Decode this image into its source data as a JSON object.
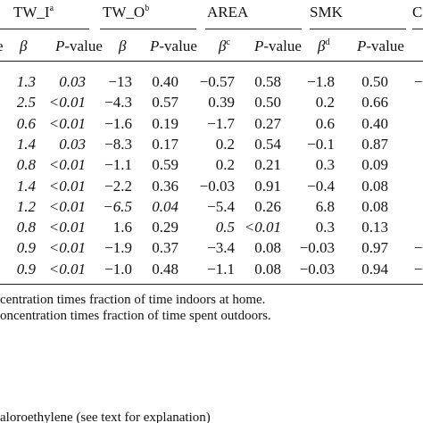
{
  "table": {
    "group_headers": [
      {
        "text": "TW_I",
        "sup": "a"
      },
      {
        "text": "TW_O",
        "sup": "b"
      },
      {
        "text": "AREA"
      },
      {
        "text": "SMK"
      },
      {
        "text": "C"
      }
    ],
    "subheader": [
      {
        "text": "e"
      },
      {
        "text": "β"
      },
      {
        "text": "P-value"
      },
      {
        "text": "β"
      },
      {
        "text": "P-value"
      },
      {
        "text": "β",
        "sup": "c"
      },
      {
        "text": "P-value"
      },
      {
        "text": "β",
        "sup": "d"
      },
      {
        "text": "P-value"
      }
    ],
    "rows": [
      [
        "1.3",
        "0.03",
        "−13",
        "0.40",
        "−0.57",
        "0.58",
        "−1.8",
        "0.50",
        "−"
      ],
      [
        "2.5",
        "<0.01",
        "−4.3",
        "0.57",
        "0.39",
        "0.50",
        "0.2",
        "0.66",
        null
      ],
      [
        "0.6",
        "<0.01",
        "−1.6",
        "0.19",
        "−1.7",
        "0.27",
        "0.6",
        "0.40",
        null
      ],
      [
        "1.4",
        "0.03",
        "−8.3",
        "0.17",
        "0.2",
        "0.54",
        "−0.1",
        "0.87",
        null
      ],
      [
        "0.8",
        "<0.01",
        "−1.1",
        "0.59",
        "0.2",
        "0.21",
        "0.3",
        "0.09",
        null
      ],
      [
        "1.4",
        "<0.01",
        "−2.2",
        "0.36",
        "−0.03",
        "0.91",
        "−0.4",
        "0.08",
        null
      ],
      [
        "1.2",
        "<0.01",
        "−6.5",
        "0.04",
        "−5.4",
        "0.26",
        "6.8",
        "0.08",
        null
      ],
      [
        "0.8",
        "<0.01",
        "1.6",
        "0.29",
        "0.5",
        "<0.01",
        "0.3",
        "0.13",
        null
      ],
      [
        "0.9",
        "<0.01",
        "−1.9",
        "0.37",
        "−3.4",
        "0.08",
        "−0.03",
        "0.97",
        "−"
      ],
      [
        "0.9",
        "<0.01",
        "−1.0",
        "0.48",
        "−1.1",
        "0.08",
        "−0.03",
        "0.94",
        "−"
      ]
    ],
    "footnotes": [
      "centration times fraction of time indoors at home.",
      "oncentration times fraction of time spent outdoors.",
      "aloroethylene (see text for explanation)"
    ]
  }
}
